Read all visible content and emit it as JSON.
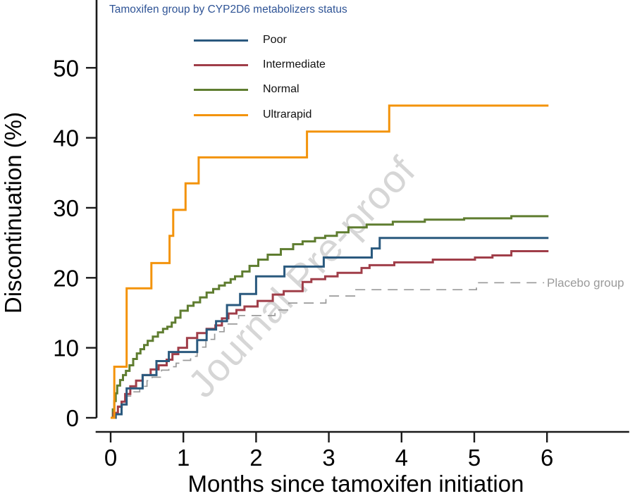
{
  "figure": {
    "watermark": "Journal Pre-proof",
    "watermark_color": "#d6d6d6",
    "background": "#ffffff",
    "axis_color": "#1a1a1a",
    "text_color": "#000000"
  },
  "legend": {
    "title": "Tamoxifen group by CYP2D6 metabolizers status",
    "title_color": "#2F5496",
    "items": [
      {
        "label": "Poor",
        "color": "#2A597E"
      },
      {
        "label": "Intermediate",
        "color": "#A03E49"
      },
      {
        "label": "Normal",
        "color": "#5F7D30"
      },
      {
        "label": "Ultrarapid",
        "color": "#F3930B"
      }
    ]
  },
  "annotations": {
    "placebo_label": "Placebo group",
    "placebo_label_color": "#9a9a9a"
  },
  "chart_data": {
    "type": "line",
    "subtype": "step-cumulative-incidence",
    "title": "",
    "xlabel": "Months since tamoxifen initiation",
    "ylabel": "Discontinuation (%)",
    "xlim": [
      0,
      7.13
    ],
    "ylim": [
      0,
      59.7
    ],
    "xticks": [
      0,
      1,
      2,
      3,
      4,
      5,
      6
    ],
    "yticks": [
      0,
      10,
      20,
      30,
      40,
      50
    ],
    "grid": false,
    "legend_position": "top-left-inside",
    "series": [
      {
        "name": "Poor",
        "color": "#2A597E",
        "dash": "solid",
        "width": 3,
        "end_x": 6.02,
        "steps": [
          [
            0,
            0
          ],
          [
            0.07,
            0.5
          ],
          [
            0.15,
            1.9
          ],
          [
            0.22,
            4.2
          ],
          [
            0.44,
            6.1
          ],
          [
            0.63,
            8.1
          ],
          [
            0.8,
            9.4
          ],
          [
            1.19,
            11.1
          ],
          [
            1.32,
            12.6
          ],
          [
            1.45,
            13.8
          ],
          [
            1.6,
            16.1
          ],
          [
            1.78,
            17.7
          ],
          [
            2.0,
            20.2
          ],
          [
            2.39,
            21.6
          ],
          [
            2.93,
            22.9
          ],
          [
            3.59,
            24.2
          ],
          [
            3.7,
            25.7
          ]
        ]
      },
      {
        "name": "Intermediate",
        "color": "#A03E49",
        "dash": "solid",
        "width": 3,
        "end_x": 6.02,
        "steps": [
          [
            0,
            0
          ],
          [
            0.04,
            0.7
          ],
          [
            0.1,
            1.6
          ],
          [
            0.15,
            2.3
          ],
          [
            0.2,
            3.4
          ],
          [
            0.27,
            4.5
          ],
          [
            0.35,
            5.3
          ],
          [
            0.44,
            6.1
          ],
          [
            0.55,
            6.9
          ],
          [
            0.66,
            7.5
          ],
          [
            0.77,
            8.3
          ],
          [
            0.85,
            9.1
          ],
          [
            0.93,
            10.0
          ],
          [
            1.05,
            11.4
          ],
          [
            1.19,
            12.1
          ],
          [
            1.32,
            12.7
          ],
          [
            1.44,
            13.2
          ],
          [
            1.53,
            14.2
          ],
          [
            1.62,
            14.9
          ],
          [
            1.73,
            15.4
          ],
          [
            1.84,
            15.9
          ],
          [
            2.02,
            16.7
          ],
          [
            2.23,
            17.6
          ],
          [
            2.38,
            18.1
          ],
          [
            2.64,
            19.4
          ],
          [
            2.76,
            19.8
          ],
          [
            2.95,
            20.2
          ],
          [
            3.12,
            20.7
          ],
          [
            3.45,
            21.4
          ],
          [
            3.56,
            21.8
          ],
          [
            3.9,
            22.2
          ],
          [
            4.43,
            22.6
          ],
          [
            5.01,
            22.9
          ],
          [
            5.25,
            23.2
          ],
          [
            5.51,
            23.8
          ]
        ]
      },
      {
        "name": "Normal",
        "color": "#5F7D30",
        "dash": "solid",
        "width": 3,
        "end_x": 6.02,
        "steps": [
          [
            0,
            0
          ],
          [
            0.03,
            1.2
          ],
          [
            0.05,
            2.4
          ],
          [
            0.07,
            3.5
          ],
          [
            0.09,
            4.6
          ],
          [
            0.13,
            5.4
          ],
          [
            0.17,
            6.1
          ],
          [
            0.21,
            6.7
          ],
          [
            0.26,
            7.5
          ],
          [
            0.31,
            8.4
          ],
          [
            0.36,
            9.2
          ],
          [
            0.41,
            9.8
          ],
          [
            0.46,
            10.4
          ],
          [
            0.51,
            11.0
          ],
          [
            0.58,
            11.6
          ],
          [
            0.65,
            12.2
          ],
          [
            0.72,
            12.7
          ],
          [
            0.78,
            13.0
          ],
          [
            0.84,
            13.6
          ],
          [
            0.89,
            14.3
          ],
          [
            0.96,
            15.3
          ],
          [
            1.06,
            16.0
          ],
          [
            1.14,
            16.5
          ],
          [
            1.23,
            17.2
          ],
          [
            1.32,
            17.9
          ],
          [
            1.41,
            18.4
          ],
          [
            1.49,
            18.9
          ],
          [
            1.57,
            19.3
          ],
          [
            1.65,
            19.8
          ],
          [
            1.71,
            20.2
          ],
          [
            1.81,
            20.9
          ],
          [
            1.91,
            21.7
          ],
          [
            2.03,
            22.6
          ],
          [
            2.16,
            23.3
          ],
          [
            2.34,
            24.1
          ],
          [
            2.51,
            24.8
          ],
          [
            2.64,
            25.2
          ],
          [
            2.81,
            25.7
          ],
          [
            2.95,
            26.0
          ],
          [
            3.11,
            26.5
          ],
          [
            3.27,
            27.2
          ],
          [
            3.52,
            27.6
          ],
          [
            3.88,
            28.0
          ],
          [
            4.32,
            28.3
          ],
          [
            4.86,
            28.5
          ],
          [
            5.51,
            28.8
          ]
        ]
      },
      {
        "name": "Ultrarapid",
        "color": "#F3930B",
        "dash": "solid",
        "width": 3,
        "end_x": 6.02,
        "steps": [
          [
            0,
            0
          ],
          [
            0.05,
            7.3
          ],
          [
            0.22,
            18.5
          ],
          [
            0.56,
            22.1
          ],
          [
            0.81,
            26.0
          ],
          [
            0.86,
            29.7
          ],
          [
            1.03,
            33.5
          ],
          [
            1.21,
            37.2
          ],
          [
            2.7,
            40.9
          ],
          [
            3.83,
            44.6
          ]
        ]
      },
      {
        "name": "Placebo group",
        "color": "#9a9a9a",
        "dash": "dashed",
        "width": 1.7,
        "end_x": 5.96,
        "steps": [
          [
            0,
            0
          ],
          [
            0.05,
            0.7
          ],
          [
            0.1,
            1.5
          ],
          [
            0.16,
            2.4
          ],
          [
            0.22,
            3.1
          ],
          [
            0.3,
            3.7
          ],
          [
            0.4,
            4.5
          ],
          [
            0.5,
            5.3
          ],
          [
            0.57,
            5.8
          ],
          [
            0.7,
            6.8
          ],
          [
            0.8,
            7.3
          ],
          [
            0.9,
            7.8
          ],
          [
            1.0,
            8.2
          ],
          [
            1.1,
            8.8
          ],
          [
            1.19,
            10.1
          ],
          [
            1.31,
            11.2
          ],
          [
            1.43,
            12.3
          ],
          [
            1.56,
            13.4
          ],
          [
            1.76,
            14.6
          ],
          [
            2.26,
            15.4
          ],
          [
            2.45,
            16.4
          ],
          [
            2.96,
            17.4
          ],
          [
            3.37,
            18.3
          ],
          [
            5.03,
            19.3
          ]
        ]
      }
    ]
  }
}
